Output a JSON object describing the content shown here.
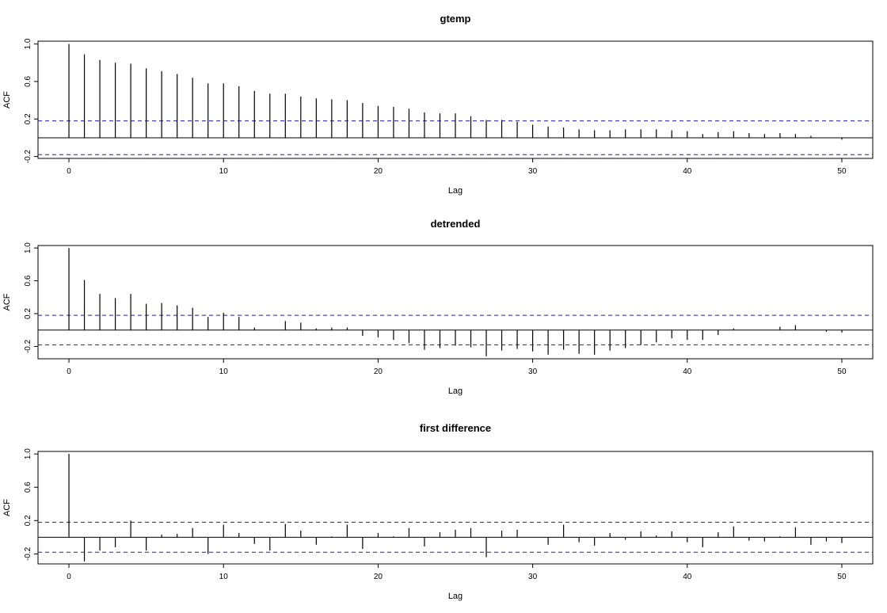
{
  "chart_data": [
    {
      "type": "bar",
      "title": "gtemp",
      "xlabel": "Lag",
      "ylabel": "ACF",
      "xlim": [
        -2,
        52
      ],
      "ylim": [
        -0.22,
        1.03
      ],
      "xticks": [
        "0",
        "10",
        "20",
        "30",
        "40",
        "50"
      ],
      "yticks": [
        "-0.2",
        "0.2",
        "0.6",
        "1.0"
      ],
      "conf_limit": 0.18,
      "lags": [
        0,
        1,
        2,
        3,
        4,
        5,
        6,
        7,
        8,
        9,
        10,
        11,
        12,
        13,
        14,
        15,
        16,
        17,
        18,
        19,
        20,
        21,
        22,
        23,
        24,
        25,
        26,
        27,
        28,
        29,
        30,
        31,
        32,
        33,
        34,
        35,
        36,
        37,
        38,
        39,
        40,
        41,
        42,
        43,
        44,
        45,
        46,
        47,
        48,
        49,
        50
      ],
      "values": [
        1.0,
        0.89,
        0.83,
        0.8,
        0.79,
        0.74,
        0.71,
        0.68,
        0.64,
        0.58,
        0.58,
        0.55,
        0.5,
        0.47,
        0.47,
        0.44,
        0.42,
        0.41,
        0.4,
        0.37,
        0.34,
        0.33,
        0.31,
        0.27,
        0.26,
        0.26,
        0.23,
        0.19,
        0.19,
        0.17,
        0.14,
        0.12,
        0.11,
        0.09,
        0.08,
        0.08,
        0.09,
        0.09,
        0.09,
        0.08,
        0.07,
        0.04,
        0.06,
        0.07,
        0.05,
        0.04,
        0.05,
        0.04,
        0.02,
        0.0,
        -0.02
      ]
    },
    {
      "type": "bar",
      "title": "detrended",
      "xlabel": "Lag",
      "ylabel": "ACF",
      "xlim": [
        -2,
        52
      ],
      "ylim": [
        -0.35,
        1.03
      ],
      "xticks": [
        "0",
        "10",
        "20",
        "30",
        "40",
        "50"
      ],
      "yticks": [
        "-0.2",
        "0.2",
        "0.6",
        "1.0"
      ],
      "conf_limit": 0.18,
      "lags": [
        0,
        1,
        2,
        3,
        4,
        5,
        6,
        7,
        8,
        9,
        10,
        11,
        12,
        13,
        14,
        15,
        16,
        17,
        18,
        19,
        20,
        21,
        22,
        23,
        24,
        25,
        26,
        27,
        28,
        29,
        30,
        31,
        32,
        33,
        34,
        35,
        36,
        37,
        38,
        39,
        40,
        41,
        42,
        43,
        44,
        45,
        46,
        47,
        48,
        49,
        50
      ],
      "values": [
        1.0,
        0.61,
        0.44,
        0.39,
        0.44,
        0.32,
        0.33,
        0.3,
        0.27,
        0.16,
        0.21,
        0.16,
        0.03,
        0.0,
        0.11,
        0.09,
        0.02,
        0.03,
        0.03,
        -0.07,
        -0.09,
        -0.12,
        -0.16,
        -0.24,
        -0.22,
        -0.19,
        -0.21,
        -0.32,
        -0.25,
        -0.23,
        -0.26,
        -0.3,
        -0.24,
        -0.29,
        -0.3,
        -0.25,
        -0.22,
        -0.18,
        -0.15,
        -0.1,
        -0.12,
        -0.12,
        -0.06,
        0.02,
        0.0,
        0.0,
        0.04,
        0.06,
        0.0,
        -0.02,
        -0.03
      ]
    },
    {
      "type": "bar",
      "title": "first difference",
      "xlabel": "Lag",
      "ylabel": "ACF",
      "xlim": [
        -2,
        52
      ],
      "ylim": [
        -0.32,
        1.03
      ],
      "xticks": [
        "0",
        "10",
        "20",
        "30",
        "40",
        "50"
      ],
      "yticks": [
        "-0.2",
        "0.2",
        "0.6",
        "1.0"
      ],
      "conf_limit": 0.18,
      "lags": [
        0,
        1,
        2,
        3,
        4,
        5,
        6,
        7,
        8,
        9,
        10,
        11,
        12,
        13,
        14,
        15,
        16,
        17,
        18,
        19,
        20,
        21,
        22,
        23,
        24,
        25,
        26,
        27,
        28,
        29,
        30,
        31,
        32,
        33,
        34,
        35,
        36,
        37,
        38,
        39,
        40,
        41,
        42,
        43,
        44,
        45,
        46,
        47,
        48,
        49,
        50
      ],
      "values": [
        1.0,
        -0.29,
        -0.16,
        -0.12,
        0.2,
        -0.16,
        0.03,
        0.04,
        0.11,
        -0.2,
        0.15,
        0.05,
        -0.08,
        -0.16,
        0.16,
        0.08,
        -0.09,
        0.01,
        0.15,
        -0.14,
        0.05,
        0.01,
        0.11,
        -0.11,
        0.06,
        0.09,
        0.11,
        -0.24,
        0.08,
        0.09,
        0.0,
        -0.09,
        0.15,
        -0.06,
        -0.1,
        0.05,
        -0.03,
        0.07,
        0.02,
        0.07,
        -0.06,
        -0.12,
        0.06,
        0.13,
        -0.04,
        -0.05,
        0.01,
        0.12,
        -0.09,
        -0.05,
        -0.07
      ]
    }
  ]
}
